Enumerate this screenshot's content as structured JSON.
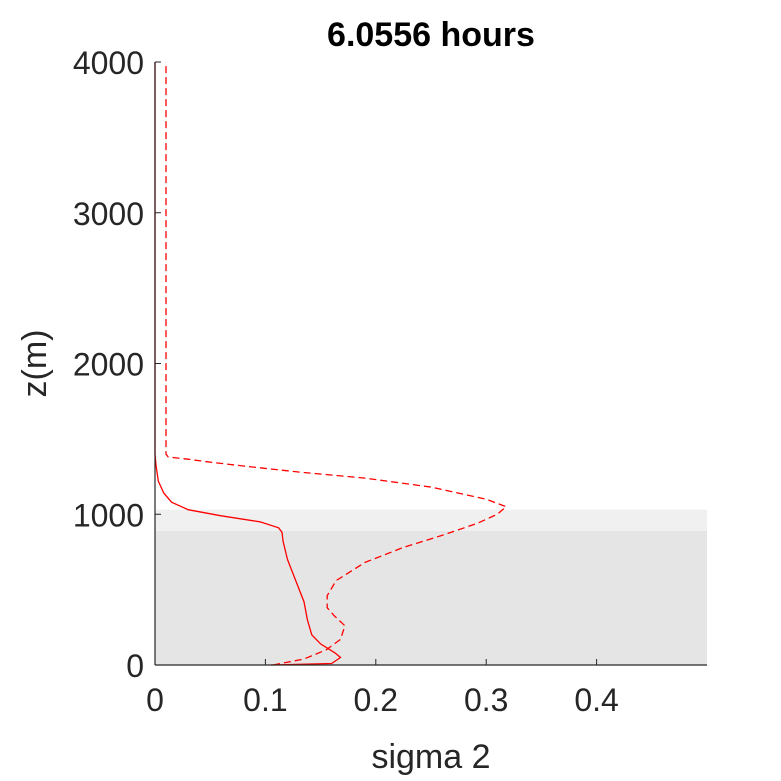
{
  "chart_data": {
    "type": "line",
    "title": "6.0556 hours",
    "xlabel": "sigma 2",
    "ylabel": "z(m)",
    "xlim": [
      0,
      0.5
    ],
    "ylim": [
      0,
      4000
    ],
    "xticks": [
      0,
      0.1,
      0.2,
      0.3,
      0.4
    ],
    "xtick_labels": [
      "0",
      "0.1",
      "0.2",
      "0.3",
      "0.4"
    ],
    "yticks": [
      0,
      1000,
      2000,
      3000,
      4000
    ],
    "ytick_labels": [
      "0",
      "1000",
      "2000",
      "3000",
      "4000"
    ],
    "grid": false,
    "shaded_bands": [
      {
        "y_range": [
          0,
          890
        ],
        "color": "#e5e5e5"
      },
      {
        "y_range": [
          890,
          1030
        ],
        "color": "#f0f0f0"
      }
    ],
    "series": [
      {
        "style": "solid",
        "color": "#ff0000",
        "points": [
          [
            0.105,
            0
          ],
          [
            0.16,
            10
          ],
          [
            0.168,
            50
          ],
          [
            0.163,
            80
          ],
          [
            0.15,
            140
          ],
          [
            0.142,
            200
          ],
          [
            0.138,
            300
          ],
          [
            0.135,
            420
          ],
          [
            0.128,
            550
          ],
          [
            0.12,
            700
          ],
          [
            0.116,
            820
          ],
          [
            0.115,
            880
          ],
          [
            0.112,
            910
          ],
          [
            0.095,
            950
          ],
          [
            0.06,
            990
          ],
          [
            0.03,
            1030
          ],
          [
            0.015,
            1080
          ],
          [
            0.008,
            1140
          ],
          [
            0.003,
            1220
          ],
          [
            0.001,
            1320
          ],
          [
            0,
            1400
          ],
          [
            0,
            4000
          ]
        ]
      },
      {
        "style": "dashed",
        "color": "#ff0000",
        "points": [
          [
            0.107,
            0
          ],
          [
            0.135,
            40
          ],
          [
            0.155,
            100
          ],
          [
            0.168,
            170
          ],
          [
            0.172,
            260
          ],
          [
            0.162,
            330
          ],
          [
            0.156,
            380
          ],
          [
            0.156,
            460
          ],
          [
            0.164,
            560
          ],
          [
            0.19,
            680
          ],
          [
            0.225,
            780
          ],
          [
            0.26,
            860
          ],
          [
            0.292,
            940
          ],
          [
            0.31,
            1000
          ],
          [
            0.318,
            1050
          ],
          [
            0.3,
            1100
          ],
          [
            0.25,
            1180
          ],
          [
            0.19,
            1240
          ],
          [
            0.13,
            1280
          ],
          [
            0.08,
            1320
          ],
          [
            0.045,
            1350
          ],
          [
            0.03,
            1365
          ],
          [
            0.012,
            1380
          ],
          [
            0.01,
            1400
          ],
          [
            0.01,
            4000
          ]
        ]
      }
    ]
  }
}
